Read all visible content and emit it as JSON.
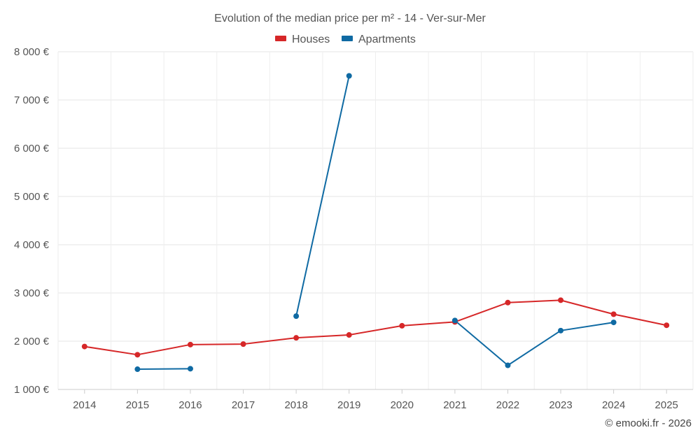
{
  "chart_data": {
    "type": "line",
    "title": "Evolution of the median price per m² - 14 - Ver-sur-Mer",
    "footer": "© emooki.fr - 2026",
    "xlabel": "",
    "ylabel": "",
    "x": [
      "2014",
      "2015",
      "2016",
      "2017",
      "2018",
      "2019",
      "2020",
      "2021",
      "2022",
      "2023",
      "2024",
      "2025"
    ],
    "ylim": [
      1000,
      8000
    ],
    "yticks": [
      1000,
      2000,
      3000,
      4000,
      5000,
      6000,
      7000,
      8000
    ],
    "ytick_labels": [
      "1 000 €",
      "2 000 €",
      "3 000 €",
      "4 000 €",
      "5 000 €",
      "6 000 €",
      "7 000 €",
      "8 000 €"
    ],
    "grid": true,
    "legend_position": "top-center",
    "series": [
      {
        "name": "Houses",
        "color": "#d62728",
        "values": [
          1890,
          1720,
          1930,
          1940,
          2070,
          2130,
          2320,
          2400,
          2800,
          2850,
          2560,
          2330
        ]
      },
      {
        "name": "Apartments",
        "color": "#0f6aa3",
        "values": [
          null,
          1420,
          1430,
          null,
          2520,
          7500,
          null,
          2430,
          1500,
          2220,
          2390,
          null
        ]
      }
    ]
  }
}
